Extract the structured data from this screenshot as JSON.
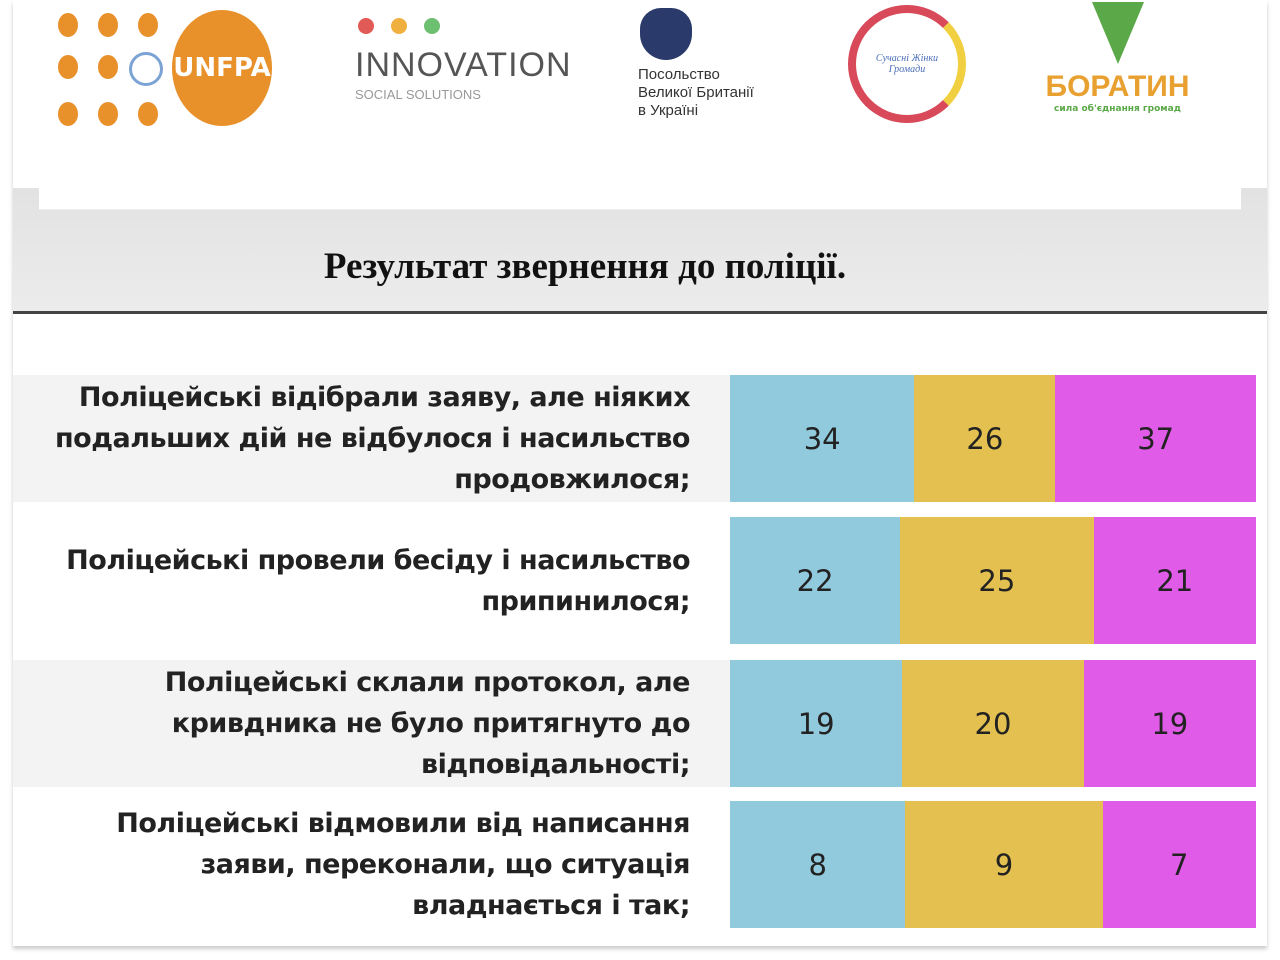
{
  "logos": {
    "unfpa": "UNFPA",
    "innovation": {
      "name": "INNOVATION",
      "tagline": "SOCIAL SOLUTIONS"
    },
    "embassy": [
      "Посольство",
      "Великої Британії",
      "в Україні"
    ],
    "women": "Сучасні Жінки Громади",
    "boratyn": {
      "name": "БОРАТИН",
      "tagline": "сила об'єднання громад"
    }
  },
  "title": "Результат звернення до поліції.",
  "colors": {
    "s1": "#92cadd",
    "s2": "#e3c050",
    "s3": "#e05ce8"
  },
  "chart_data": {
    "type": "bar",
    "stacked": "100%",
    "title": "Результат звернення до поліції.",
    "categories": [
      "Поліцейські відібрали заяву, але ніяких подальших дій не відбулося і насильство продовжилося;",
      "Поліцейські провели бесіду і насильство припинилося;",
      "Поліцейські склали протокол, але кривдника не було притягнуто до відповідальності;",
      "Поліцейські відмовили від написання заяви, переконали, що ситуація владнається і так;"
    ],
    "series": [
      {
        "name": "series-1",
        "values": [
          34,
          22,
          19,
          8
        ]
      },
      {
        "name": "series-2",
        "values": [
          26,
          25,
          20,
          9
        ]
      },
      {
        "name": "series-3",
        "values": [
          37,
          21,
          19,
          7
        ]
      }
    ]
  }
}
